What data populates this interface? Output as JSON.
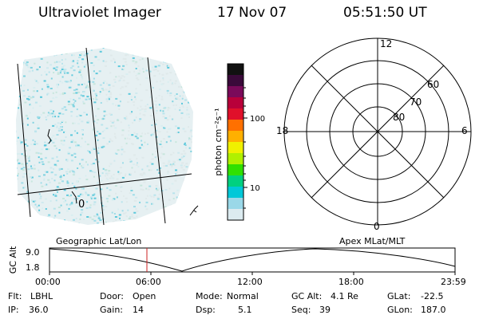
{
  "header": {
    "title": "Ultraviolet Imager",
    "date": "17 Nov 07",
    "time": "05:51:50 UT"
  },
  "colorbar": {
    "label": "photon cm⁻²s⁻¹",
    "ticks": [
      "100",
      "10"
    ],
    "colors": [
      "#111111",
      "#3a0a3a",
      "#7a0a5a",
      "#b8003a",
      "#e0102a",
      "#ff7000",
      "#ffb000",
      "#f0f000",
      "#b0f000",
      "#30e000",
      "#00d080",
      "#00c8d8",
      "#9ad8e8",
      "#dcebf0"
    ]
  },
  "geo_panel": {
    "label_zero": "0"
  },
  "polar_panel": {
    "mlt_labels": [
      "12",
      "18",
      "6",
      "0"
    ],
    "lat_labels": [
      "60",
      "70",
      "80"
    ]
  },
  "timeline": {
    "left_label": "Geographic Lat/Lon",
    "right_label": "Apex MLat/MLT",
    "y_axis_title": "GC Alt",
    "y_ticks": [
      "9.0",
      "1.8"
    ],
    "x_ticks": [
      "00:00",
      "06:00",
      "12:00",
      "18:00",
      "23:59"
    ],
    "current_time_marker": "05:51:50",
    "marker_color": "#cc2222"
  },
  "info": {
    "flt_label": "Flt:",
    "flt_value": "LBHL",
    "ip_label": "IP:",
    "ip_value": "36.0",
    "door_label": "Door:",
    "door_value": "Open",
    "gain_label": "Gain:",
    "gain_value": "14",
    "mode_label": "Mode:",
    "mode_value": "Normal",
    "dsp_label": "Dsp:",
    "dsp_value": "5.1",
    "gcalt_label": "GC Alt:",
    "gcalt_value": "4.1 Re",
    "seq_label": "Seq:",
    "seq_value": "39",
    "glat_label": "GLat:",
    "glat_value": "-22.5",
    "glon_label": "GLon:",
    "glon_value": "187.0"
  }
}
